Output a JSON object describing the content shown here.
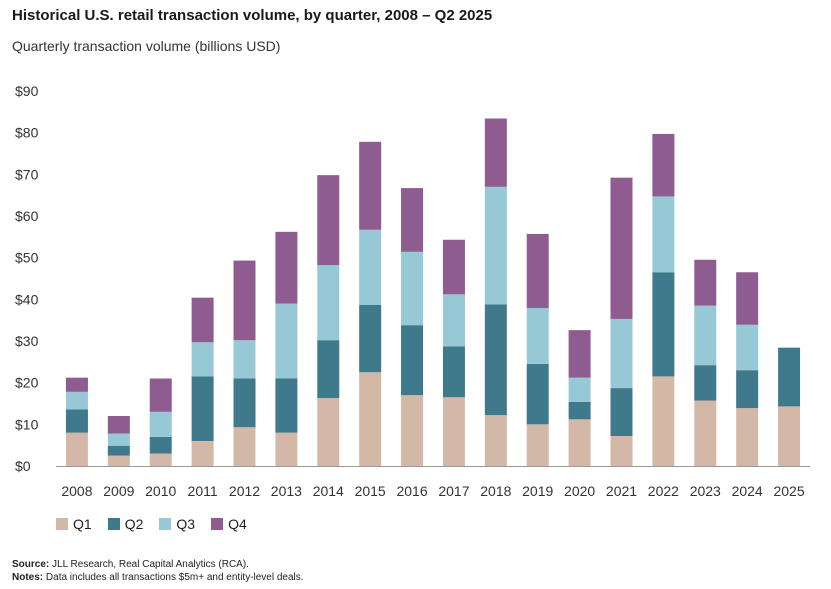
{
  "chart_data": {
    "type": "bar",
    "stacked": true,
    "title": "Historical U.S. retail transaction volume, by quarter, 2008 – Q2 2025",
    "subtitle": "Quarterly transaction volume (billions USD)",
    "xlabel": "",
    "ylabel": "",
    "ylim": [
      0,
      90
    ],
    "yticks": [
      "$0",
      "$10",
      "$20",
      "$30",
      "$40",
      "$50",
      "$60",
      "$70",
      "$80",
      "$90"
    ],
    "categories": [
      "2008",
      "2009",
      "2010",
      "2011",
      "2012",
      "2013",
      "2014",
      "2015",
      "2016",
      "2017",
      "2018",
      "2019",
      "2020",
      "2021",
      "2022",
      "2023",
      "2024",
      "2025"
    ],
    "series": [
      {
        "name": "Q1",
        "color": "#d3b8a7",
        "values": [
          8,
          2.5,
          3,
          6,
          9.3,
          8,
          16.3,
          22.5,
          17,
          16.5,
          12.2,
          10,
          11.2,
          7.2,
          21.5,
          15.7,
          13.9,
          14.3
        ]
      },
      {
        "name": "Q2",
        "color": "#3f7a8c",
        "values": [
          5.6,
          2.3,
          4,
          15.5,
          11.7,
          13,
          13.9,
          16.2,
          16.8,
          12.2,
          26.6,
          14.5,
          4.2,
          11.5,
          25,
          8.5,
          9.1,
          14.1
        ]
      },
      {
        "name": "Q3",
        "color": "#97c8d6",
        "values": [
          4.2,
          3,
          6,
          8.2,
          9.2,
          18,
          18,
          18,
          17.6,
          12.5,
          28.2,
          13.4,
          5.8,
          16.6,
          18.2,
          14.3,
          10.9,
          0
        ]
      },
      {
        "name": "Q4",
        "color": "#8f5c91",
        "values": [
          3.4,
          4.2,
          8,
          10.7,
          19.1,
          17.2,
          21.6,
          21.1,
          15.3,
          13.1,
          16.4,
          17.8,
          11.4,
          33.9,
          15,
          11,
          12.6,
          0
        ]
      }
    ]
  },
  "footer": {
    "source_label": "Source:",
    "source_text": "JLL Research, Real Capital Analytics (RCA).",
    "notes_label": "Notes:",
    "notes_text": "Data includes all transactions $5m+ and entity-level deals."
  }
}
